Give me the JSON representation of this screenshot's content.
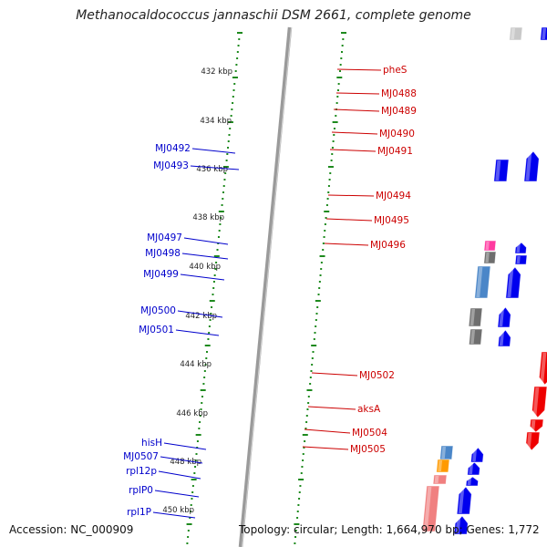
{
  "title": "Methanocaldococcus jannaschii DSM 2661, complete genome",
  "footer": {
    "accession": "Accession: NC_000909",
    "summary": "Topology: circular; Length: 1,664,970 bp; Genes: 1,772"
  },
  "colors": {
    "forward": "#0000ee",
    "reverse": "#ee0000",
    "forward_label": "#0000cc",
    "reverse_label": "#cc0000",
    "backbone": "#888888",
    "ticks": "#1e8a1e"
  },
  "kbp_labels": [
    "432 kbp",
    "434 kbp",
    "436 kbp",
    "438 kbp",
    "440 kbp",
    "442 kbp",
    "444 kbp",
    "446 kbp",
    "448 kbp",
    "450 kbp"
  ],
  "gene_labels_right": [
    "pheS",
    "MJ0488",
    "MJ0489",
    "MJ0490",
    "MJ0491",
    "MJ0494",
    "MJ0495",
    "MJ0496",
    "MJ0502",
    "aksA",
    "MJ0504",
    "MJ0505"
  ],
  "gene_labels_left": [
    "MJ0492",
    "MJ0493",
    "MJ0497",
    "MJ0498",
    "MJ0499",
    "MJ0500",
    "MJ0501",
    "hisH",
    "MJ0507",
    "rpl12p",
    "rplP0",
    "rpl1P"
  ]
}
